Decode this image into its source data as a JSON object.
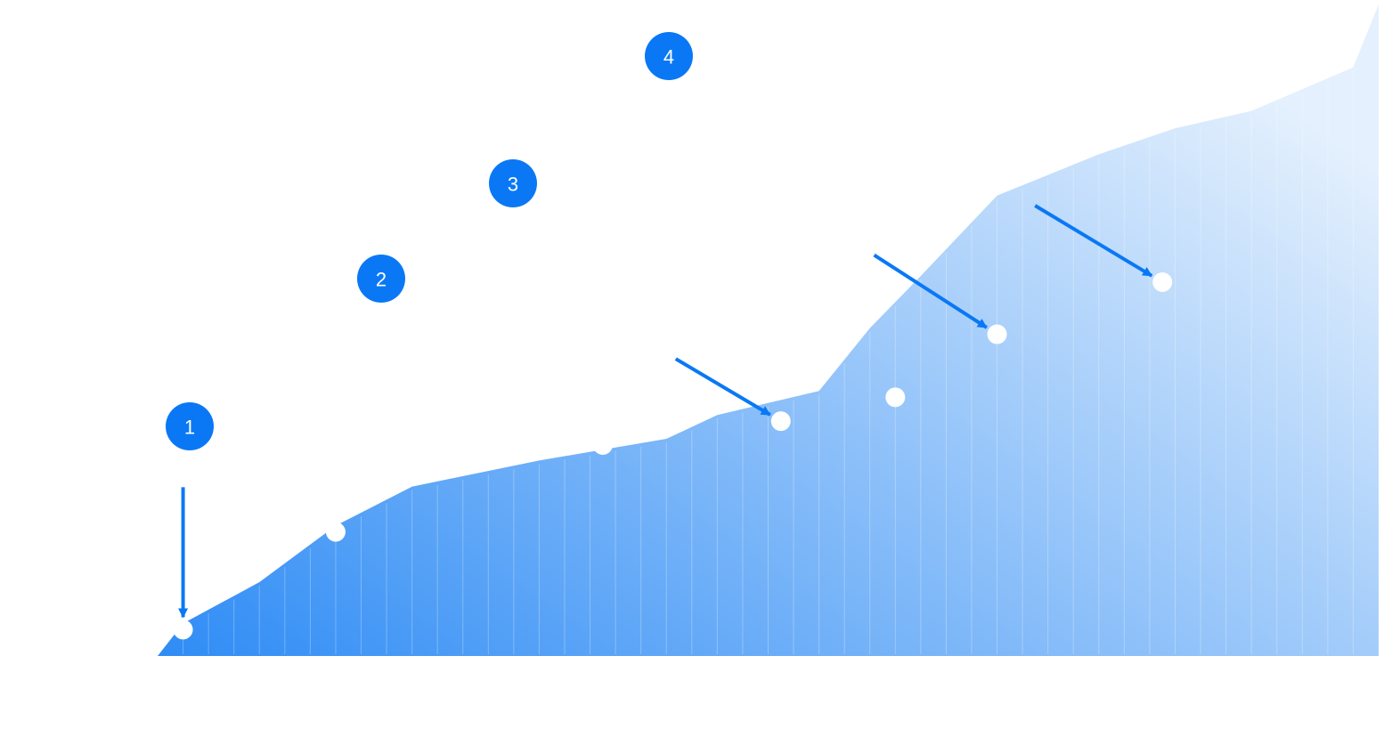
{
  "chart_data": {
    "type": "area",
    "title": "",
    "xlabel": "",
    "ylabel": "",
    "grid": false,
    "legend": "none",
    "x": [
      0,
      1,
      4,
      7,
      10,
      15,
      20,
      22,
      26,
      28,
      30,
      33,
      37,
      40,
      43,
      47,
      48
    ],
    "values": [
      0,
      15,
      34,
      60,
      78,
      90,
      100,
      111,
      122,
      151,
      175,
      212,
      231,
      243,
      251,
      271,
      300
    ],
    "xlim": [
      0,
      48
    ],
    "ylim": [
      0,
      300
    ],
    "markers": [
      {
        "x": 1,
        "y": 15
      },
      {
        "x": 7,
        "y": 60
      },
      {
        "x": 17.5,
        "y": 100
      },
      {
        "x": 24.5,
        "y": 111
      },
      {
        "x": 29,
        "y": 122
      },
      {
        "x": 33,
        "y": 151
      },
      {
        "x": 39.5,
        "y": 175
      }
    ],
    "annotations": [
      {
        "label": "1",
        "marker_index": 0
      },
      {
        "label": "2",
        "marker_index": 3
      },
      {
        "label": "3",
        "marker_index": 5
      },
      {
        "label": "4",
        "marker_index": 6
      }
    ],
    "colors": {
      "area_start": "#2f8cf5",
      "area_end": "#e4f0fd",
      "accent": "#0a78f5",
      "marker": "#ffffff"
    }
  }
}
